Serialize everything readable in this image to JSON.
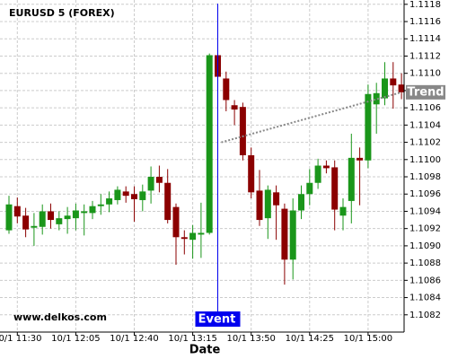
{
  "chart_data": {
    "type": "candlestick",
    "title": "EURUSD 5 (FOREX)",
    "watermark": "www.delkos.com",
    "x_label": "Date",
    "categories": [
      null,
      "10/1 11:30",
      null,
      null,
      null,
      null,
      null,
      null,
      "10/1 12:05",
      null,
      null,
      null,
      null,
      null,
      null,
      "10/1 12:40",
      null,
      null,
      null,
      null,
      null,
      null,
      "10/1 13:15",
      null,
      null,
      null,
      null,
      null,
      null,
      "10/1 13:50",
      null,
      null,
      null,
      null,
      null,
      null,
      "10/1 14:25",
      null,
      null,
      null,
      null,
      null,
      null,
      "10/1 15:00",
      null,
      null,
      null,
      null
    ],
    "open": [
      1.10918,
      1.10946,
      1.10935,
      1.10921,
      1.10922,
      1.1094,
      1.10925,
      1.10931,
      1.10932,
      1.10938,
      1.10938,
      1.10946,
      1.10948,
      1.10953,
      1.10963,
      1.1096,
      1.10953,
      1.10964,
      1.1098,
      1.10973,
      1.10945,
      1.1091,
      1.10907,
      1.10913,
      1.10915,
      1.11121,
      1.11094,
      1.11063,
      1.11061,
      1.11005,
      1.10964,
      1.10932,
      1.10962,
      1.10943,
      1.10884,
      1.10941,
      1.1096,
      1.10973,
      1.10993,
      1.10991,
      1.10935,
      1.10952,
      1.11002,
      1.10999,
      1.11064,
      1.11071,
      1.11094,
      1.11087
    ],
    "high": [
      1.10958,
      1.10956,
      1.10944,
      1.10938,
      1.10948,
      1.10949,
      1.1094,
      1.10945,
      1.10949,
      1.10948,
      1.10952,
      1.1096,
      1.10963,
      1.10969,
      1.10969,
      1.10969,
      1.10971,
      1.10992,
      1.10993,
      1.10989,
      1.10949,
      1.10918,
      1.10924,
      1.1095,
      1.11123,
      1.11123,
      1.11102,
      1.11069,
      1.11066,
      1.11014,
      1.10988,
      1.1097,
      1.1097,
      1.10949,
      1.10955,
      1.1097,
      1.10989,
      1.11001,
      1.10999,
      1.10999,
      1.10955,
      1.1103,
      1.11014,
      1.11087,
      1.11089,
      1.11113,
      1.11113,
      1.111
    ],
    "low": [
      1.10914,
      1.10926,
      1.1091,
      1.109,
      1.10913,
      1.1092,
      1.10918,
      1.10914,
      1.10918,
      1.10912,
      1.10931,
      1.10936,
      1.10939,
      1.10948,
      1.1095,
      1.10928,
      1.1094,
      1.10949,
      1.10962,
      1.10926,
      1.10878,
      1.1089,
      1.10885,
      1.10886,
      1.10913,
      1.11094,
      1.11056,
      1.1104,
      1.10999,
      1.10955,
      1.10923,
      1.10908,
      1.10907,
      1.10855,
      1.10861,
      1.10931,
      1.10947,
      1.10966,
      1.10984,
      1.10918,
      1.10918,
      1.10926,
      1.10947,
      1.1099,
      1.1103,
      1.11063,
      1.11059,
      1.1107
    ],
    "close": [
      1.10948,
      1.10934,
      1.10919,
      1.10923,
      1.1094,
      1.1093,
      1.10932,
      1.10935,
      1.10941,
      1.1094,
      1.10946,
      1.10948,
      1.10955,
      1.10965,
      1.10958,
      1.10954,
      1.10963,
      1.1098,
      1.10973,
      1.1093,
      1.1091,
      1.10908,
      1.10915,
      1.10915,
      1.11121,
      1.11096,
      1.11069,
      1.11058,
      1.11005,
      1.10962,
      1.1093,
      1.10965,
      1.10947,
      1.10884,
      1.10941,
      1.1096,
      1.10973,
      1.10993,
      1.1099,
      1.10942,
      1.10945,
      1.11002,
      1.10999,
      1.11076,
      1.11077,
      1.11094,
      1.11086,
      1.11078
    ],
    "up_color": "#1a961a",
    "down_color": "#8b0000",
    "event": {
      "label": "Event",
      "index": 25,
      "color": "#0000ee"
    },
    "trend": {
      "label": "Trend",
      "start": 1.1102,
      "end": 1.11078,
      "color": "#888888"
    },
    "ylim": [
      1.108,
      1.11185
    ],
    "yticks": [
      {
        "value": 1.1082,
        "label": "1.1082"
      },
      {
        "value": 1.1084,
        "label": "1.1084"
      },
      {
        "value": 1.1086,
        "label": "1.1086"
      },
      {
        "value": 1.1088,
        "label": "1.1088"
      },
      {
        "value": 1.109,
        "label": "1.1090"
      },
      {
        "value": 1.1092,
        "label": "1.1092"
      },
      {
        "value": 1.1094,
        "label": "1.1094"
      },
      {
        "value": 1.1096,
        "label": "1.1096"
      },
      {
        "value": 1.1098,
        "label": "1.1098"
      },
      {
        "value": 1.11,
        "label": "1.1100"
      },
      {
        "value": 1.1102,
        "label": "1.1102"
      },
      {
        "value": 1.1104,
        "label": "1.1104"
      },
      {
        "value": 1.1106,
        "label": "1.1106"
      },
      {
        "value": 1.1108,
        "label": "1.1108"
      },
      {
        "value": 1.111,
        "label": "1.1110"
      },
      {
        "value": 1.1112,
        "label": "1.1112"
      },
      {
        "value": 1.1114,
        "label": "1.1114"
      },
      {
        "value": 1.1116,
        "label": "1.1116"
      },
      {
        "value": 1.1118,
        "label": "1.1118"
      }
    ],
    "grid": true
  }
}
